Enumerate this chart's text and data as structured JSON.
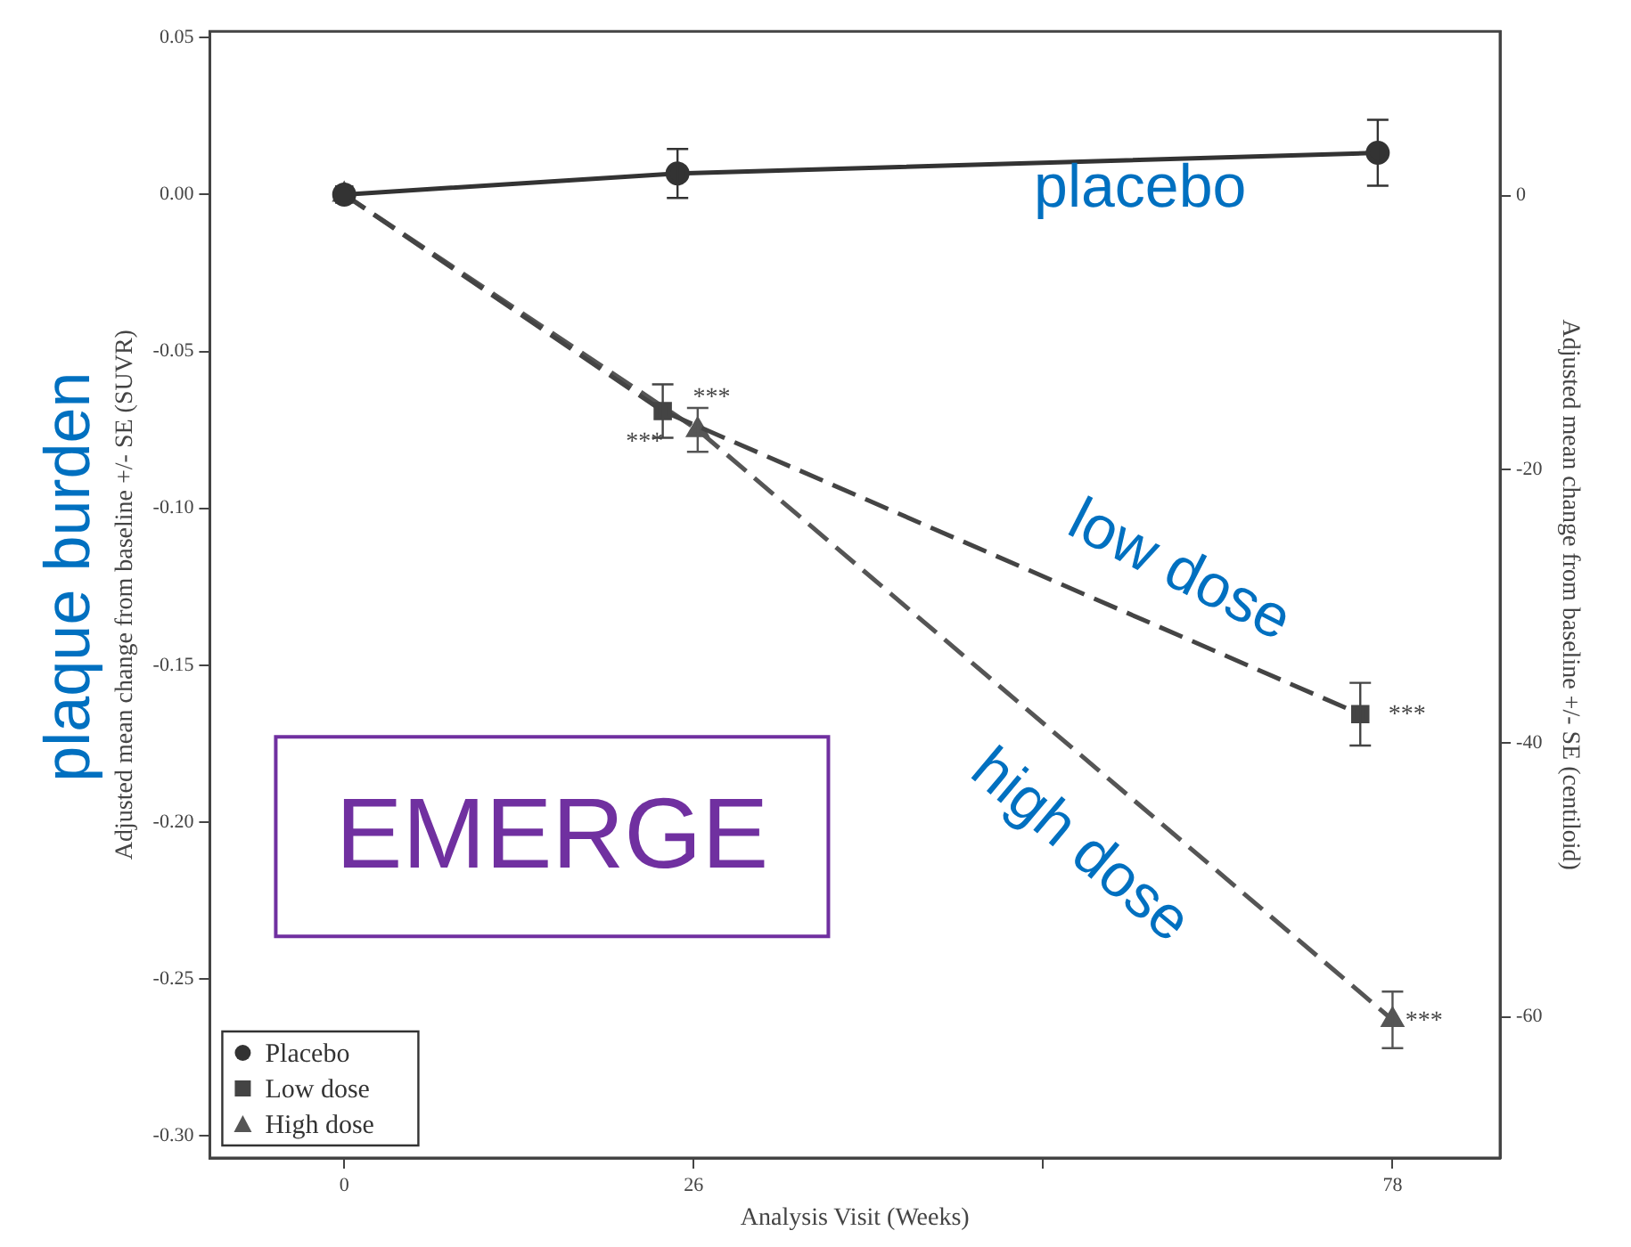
{
  "chart_data": {
    "type": "line",
    "xlabel": "Analysis Visit (Weeks)",
    "ylabel": "Adjusted mean change from baseline +/- SE (SUVR)",
    "y2label": "Adjusted mean change from baseline +/- SE (centiloid)",
    "xlim": [
      -10,
      86
    ],
    "xticks": [
      0,
      26,
      {
        "value": 52,
        "label": null
      },
      78
    ],
    "ylim": [
      -0.307,
      0.052
    ],
    "yticks": [
      {
        "value": 0.05,
        "label": "0.05"
      },
      {
        "value": 0,
        "label": "0.00"
      },
      {
        "value": -0.05,
        "label": "-0.05"
      },
      {
        "value": -0.1,
        "label": "-0.10"
      },
      {
        "value": -0.15,
        "label": "-0.15"
      },
      {
        "value": -0.2,
        "label": "-0.20"
      },
      {
        "value": -0.25,
        "label": "-0.25"
      },
      {
        "value": -0.3,
        "label": "-0.30"
      }
    ],
    "y2lim": [
      -70.3,
      12
    ],
    "y2ticks": [
      0,
      -20,
      -40,
      -60
    ],
    "series": [
      {
        "name": "Placebo",
        "color": "#333333",
        "x": [
          0,
          24.8,
          76.9
        ],
        "values": [
          0,
          0.0067,
          0.0133
        ],
        "errors": [
          null,
          0.0078,
          0.0105
        ],
        "marker": "circle",
        "line_style": "solid"
      },
      {
        "name": "Low dose",
        "color": "#444444",
        "x": [
          0,
          23.7,
          75.6
        ],
        "values": [
          0,
          -0.069,
          -0.1656
        ],
        "errors": [
          null,
          0.0085,
          0.01
        ],
        "marker": "square",
        "line_style": "dashed"
      },
      {
        "name": "High dose",
        "color": "#555555",
        "x": [
          0,
          26.3,
          78
        ],
        "values": [
          0,
          -0.075,
          -0.263
        ],
        "errors": [
          null,
          0.007,
          0.009
        ],
        "marker": "triangle",
        "line_style": "dashed"
      }
    ],
    "annotations": [
      "plaque burden",
      "EMERGE",
      "placebo",
      "low dose",
      "high dose",
      "***",
      "***",
      "***",
      "***"
    ],
    "legend": "bottom left",
    "grid": false
  }
}
